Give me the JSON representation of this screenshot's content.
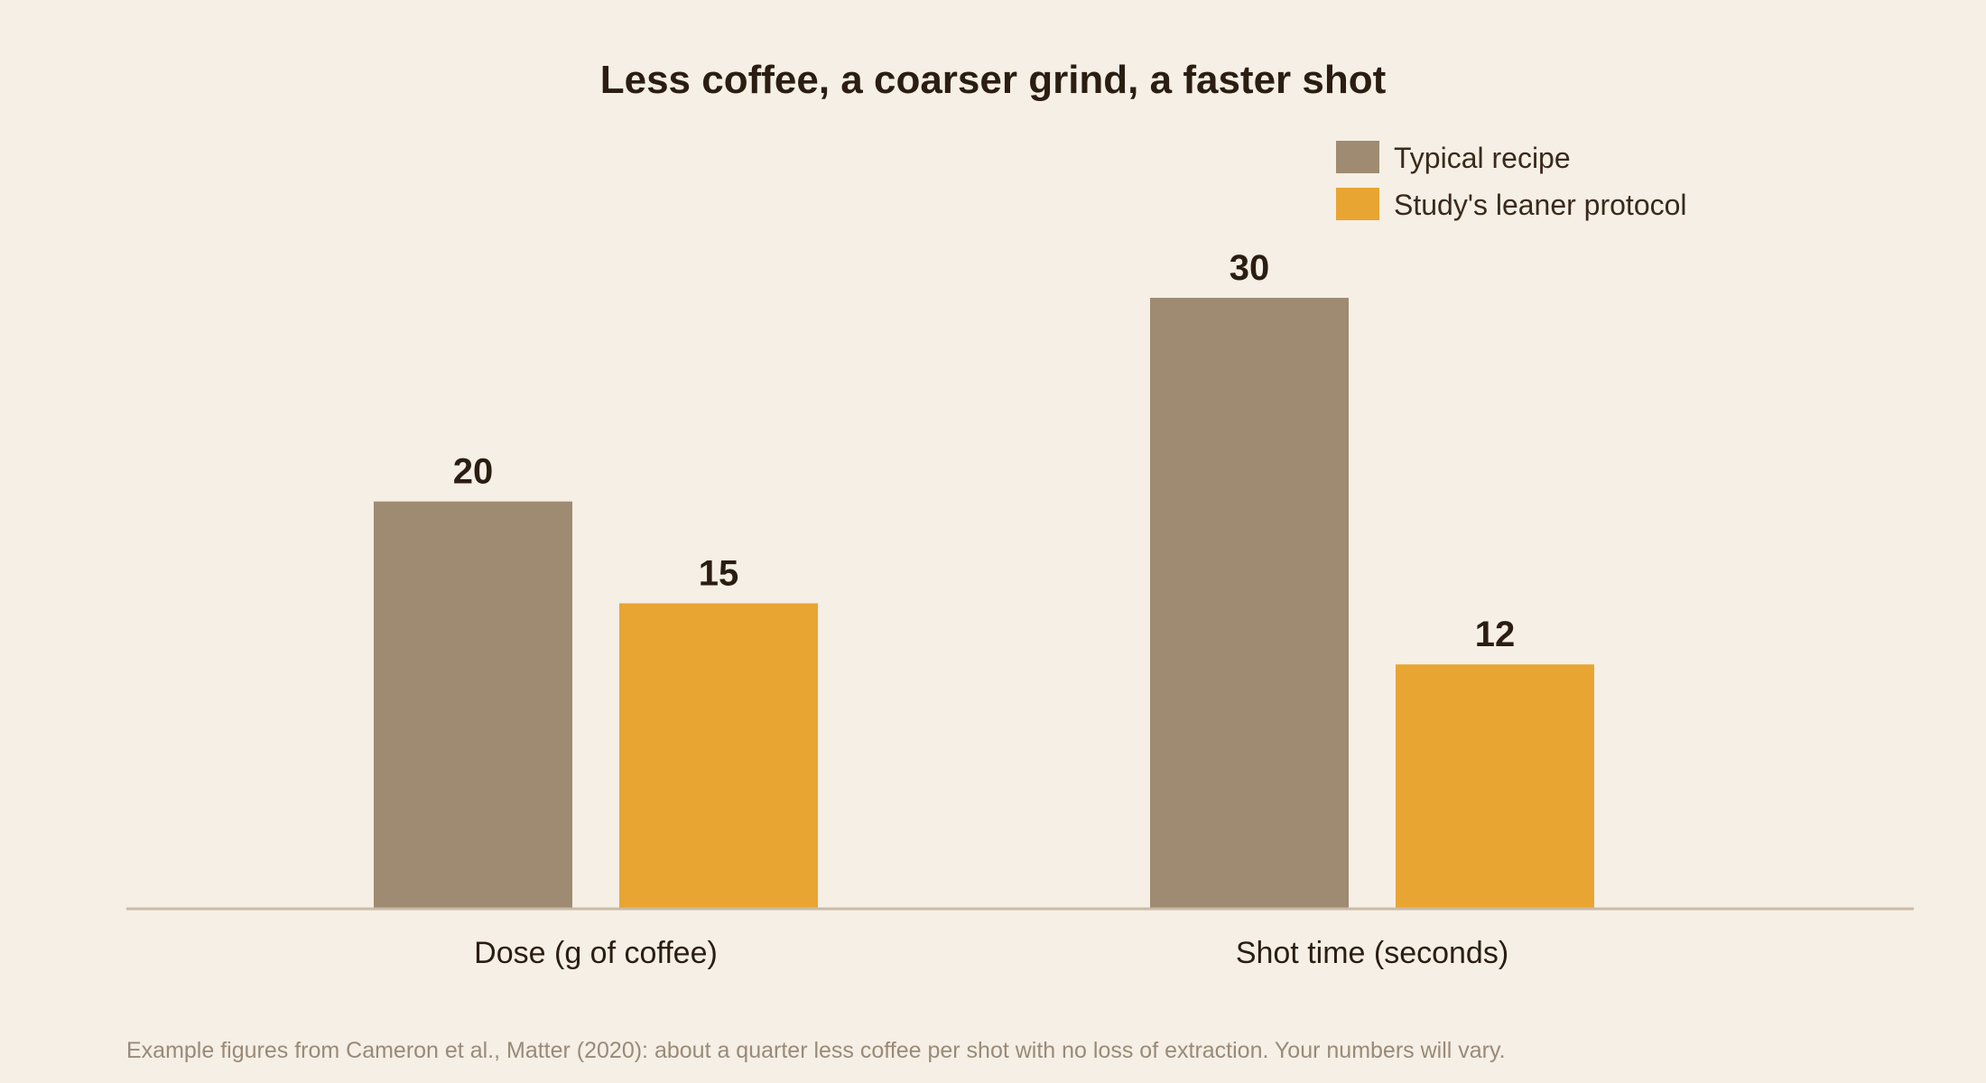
{
  "colors": {
    "background": "#f5efe5",
    "typical": "#9e8b72",
    "lean": "#e8a532",
    "baseline": "#cbbba6"
  },
  "chart_data": {
    "type": "bar",
    "title": "Less coffee, a coarser grind, a faster shot",
    "categories": [
      "Dose (g of coffee)",
      "Shot time (seconds)"
    ],
    "series": [
      {
        "name": "Typical recipe",
        "values": [
          20,
          30
        ],
        "color": "#9e8b72"
      },
      {
        "name": "Study's leaner protocol",
        "values": [
          15,
          12
        ],
        "color": "#e8a532"
      }
    ],
    "ylim": [
      0,
      30
    ],
    "grid": false,
    "legend": "top-right",
    "footnote": "Example figures from Cameron et al., Matter (2020): about a quarter less coffee per shot with no loss of extraction. Your numbers will vary."
  }
}
